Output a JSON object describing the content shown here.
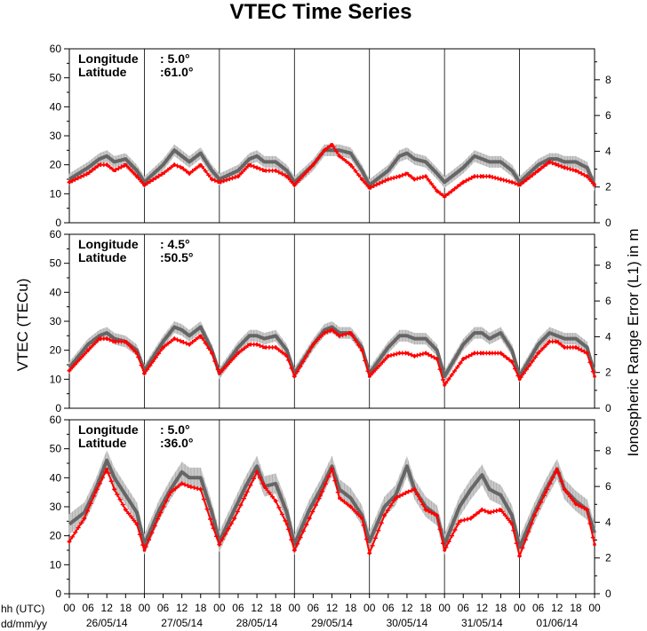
{
  "chart_data": {
    "type": "line",
    "title": "VTEC Time Series",
    "ylabel_left": "VTEC (TECu)",
    "ylabel_right": "Ionospheric Range Error (L1) in m",
    "x_row1_label": "hh (UTC)",
    "x_row2_label": "dd/mm/yy",
    "hour_ticks": [
      "00",
      "06",
      "12",
      "18"
    ],
    "final_hour_tick": "00",
    "dates": [
      "26/05/14",
      "27/05/14",
      "28/05/14",
      "29/05/14",
      "30/05/14",
      "31/05/14",
      "01/06/14"
    ],
    "ylim_left": [
      0,
      60
    ],
    "yticks_left": [
      "0",
      "10",
      "20",
      "30",
      "40",
      "50",
      "60"
    ],
    "ylim_right": [
      0,
      9.73
    ],
    "yticks_right": [
      "0",
      "2",
      "4",
      "6",
      "8"
    ],
    "grid": "vertical lines at day boundaries",
    "x_unit": "days since 26/05/14 00:00 UTC",
    "series_colors": {
      "reference": "#666666",
      "measured": "#ff0000",
      "band": "#c8c8c8",
      "error_bars": "#aaaaaa"
    },
    "panels": [
      {
        "longitude_label": "Longitude",
        "longitude_value": ":   5.0°",
        "latitude_label": "Latitude",
        "latitude_value": ":61.0°",
        "series": [
          {
            "role": "reference",
            "x": [
              0,
              0.25,
              0.4,
              0.5,
              0.6,
              0.75,
              0.9,
              1,
              1.25,
              1.4,
              1.5,
              1.6,
              1.75,
              1.9,
              2,
              2.25,
              2.4,
              2.5,
              2.6,
              2.75,
              2.9,
              3,
              3.25,
              3.4,
              3.5,
              3.6,
              3.75,
              3.9,
              4,
              4.25,
              4.4,
              4.5,
              4.6,
              4.75,
              4.9,
              5,
              5.25,
              5.4,
              5.5,
              5.6,
              5.75,
              5.9,
              6,
              6.25,
              6.4,
              6.5,
              6.6,
              6.75,
              6.9,
              7
            ],
            "y": [
              15,
              19,
              22,
              23,
              21,
              22,
              18,
              14,
              20,
              25,
              23,
              21,
              24,
              18,
              15,
              18,
              22,
              23,
              21,
              21,
              18,
              14,
              20,
              25,
              25,
              25,
              24,
              18,
              13,
              18,
              23,
              24,
              22,
              21,
              17,
              14,
              19,
              23,
              22,
              21,
              21,
              18,
              14,
              20,
              22,
              22,
              21,
              21,
              19,
              13
            ]
          },
          {
            "role": "measured",
            "x": [
              0,
              0.25,
              0.4,
              0.5,
              0.6,
              0.75,
              0.9,
              1,
              1.25,
              1.4,
              1.5,
              1.6,
              1.75,
              1.9,
              2,
              2.25,
              2.4,
              2.5,
              2.6,
              2.75,
              2.9,
              3,
              3.25,
              3.4,
              3.5,
              3.6,
              3.75,
              3.9,
              4,
              4.25,
              4.4,
              4.5,
              4.6,
              4.75,
              4.9,
              5,
              5.25,
              5.4,
              5.5,
              5.6,
              5.75,
              5.9,
              6,
              6.25,
              6.4,
              6.5,
              6.6,
              6.75,
              6.9,
              7
            ],
            "y": [
              14,
              17,
              20,
              20,
              18,
              20,
              16,
              13,
              17,
              20,
              19,
              17,
              20,
              15,
              14,
              16,
              20,
              19,
              18,
              18,
              16,
              13,
              20,
              25,
              27,
              23,
              20,
              15,
              12,
              15,
              16,
              17,
              15,
              16,
              11,
              9,
              14,
              16,
              16,
              16,
              15,
              14,
              13,
              18,
              21,
              20,
              19,
              18,
              16,
              13
            ]
          }
        ]
      },
      {
        "longitude_label": "Longitude",
        "longitude_value": ":   4.5°",
        "latitude_label": "Latitude",
        "latitude_value": ":50.5°",
        "series": [
          {
            "role": "reference",
            "x": [
              0,
              0.25,
              0.4,
              0.5,
              0.6,
              0.75,
              0.9,
              1,
              1.25,
              1.4,
              1.5,
              1.6,
              1.75,
              1.9,
              2,
              2.25,
              2.4,
              2.5,
              2.6,
              2.75,
              2.9,
              3,
              3.25,
              3.4,
              3.5,
              3.6,
              3.75,
              3.9,
              4,
              4.25,
              4.4,
              4.5,
              4.6,
              4.75,
              4.9,
              5,
              5.25,
              5.4,
              5.5,
              5.6,
              5.75,
              5.9,
              6,
              6.25,
              6.4,
              6.5,
              6.6,
              6.75,
              6.9,
              7
            ],
            "y": [
              14,
              22,
              25,
              26,
              24,
              23,
              20,
              13,
              23,
              28,
              27,
              25,
              28,
              20,
              12,
              21,
              25,
              25,
              24,
              25,
              20,
              12,
              22,
              27,
              28,
              26,
              26,
              21,
              12,
              21,
              25,
              25,
              24,
              24,
              20,
              11,
              22,
              26,
              26,
              24,
              26,
              20,
              11,
              22,
              26,
              25,
              24,
              24,
              21,
              12
            ]
          },
          {
            "role": "measured",
            "x": [
              0,
              0.25,
              0.4,
              0.5,
              0.6,
              0.75,
              0.9,
              1,
              1.25,
              1.4,
              1.5,
              1.6,
              1.75,
              1.9,
              2,
              2.25,
              2.4,
              2.5,
              2.6,
              2.75,
              2.9,
              3,
              3.25,
              3.4,
              3.5,
              3.6,
              3.75,
              3.9,
              4,
              4.25,
              4.4,
              4.5,
              4.6,
              4.75,
              4.9,
              5,
              5.25,
              5.4,
              5.5,
              5.6,
              5.75,
              5.9,
              6,
              6.25,
              6.4,
              6.5,
              6.6,
              6.75,
              6.9,
              7
            ],
            "y": [
              13,
              20,
              24,
              24,
              23,
              23,
              19,
              12,
              21,
              24,
              23,
              22,
              25,
              19,
              12,
              19,
              22,
              22,
              21,
              21,
              18,
              11,
              22,
              26,
              27,
              25,
              26,
              20,
              11,
              18,
              19,
              19,
              18,
              19,
              17,
              8,
              17,
              19,
              19,
              19,
              19,
              16,
              10,
              19,
              23,
              23,
              21,
              21,
              19,
              11
            ]
          }
        ]
      },
      {
        "longitude_label": "Longitude",
        "longitude_value": ":   5.0°",
        "latitude_label": "Latitude",
        "latitude_value": ":36.0°",
        "series": [
          {
            "role": "reference",
            "x": [
              0,
              0.2,
              0.35,
              0.5,
              0.6,
              0.75,
              0.9,
              1,
              1.2,
              1.35,
              1.5,
              1.6,
              1.75,
              1.9,
              2,
              2.2,
              2.35,
              2.5,
              2.6,
              2.75,
              2.9,
              3,
              3.2,
              3.35,
              3.5,
              3.6,
              3.75,
              3.9,
              4,
              4.2,
              4.35,
              4.5,
              4.6,
              4.75,
              4.9,
              5,
              5.2,
              5.35,
              5.5,
              5.6,
              5.75,
              5.9,
              6,
              6.2,
              6.35,
              6.5,
              6.6,
              6.75,
              6.9,
              7
            ],
            "y": [
              24,
              28,
              36,
              46,
              40,
              34,
              28,
              17,
              29,
              36,
              42,
              40,
              40,
              28,
              18,
              29,
              37,
              44,
              37,
              38,
              28,
              17,
              29,
              36,
              44,
              36,
              33,
              27,
              18,
              30,
              34,
              44,
              36,
              30,
              27,
              17,
              30,
              36,
              41,
              36,
              34,
              27,
              16,
              28,
              36,
              43,
              36,
              32,
              29,
              21
            ]
          },
          {
            "role": "measured",
            "x": [
              0,
              0.2,
              0.35,
              0.5,
              0.6,
              0.75,
              0.9,
              1,
              1.2,
              1.35,
              1.5,
              1.6,
              1.75,
              1.9,
              2,
              2.2,
              2.35,
              2.5,
              2.6,
              2.75,
              2.9,
              3,
              3.2,
              3.35,
              3.5,
              3.6,
              3.75,
              3.9,
              4,
              4.2,
              4.35,
              4.5,
              4.6,
              4.75,
              4.9,
              5,
              5.2,
              5.35,
              5.5,
              5.6,
              5.75,
              5.9,
              6,
              6.2,
              6.35,
              6.5,
              6.6,
              6.75,
              6.9,
              7
            ],
            "y": [
              18,
              26,
              35,
              43,
              36,
              29,
              24,
              15,
              27,
              35,
              38,
              37,
              36,
              24,
              17,
              26,
              34,
              42,
              37,
              32,
              24,
              15,
              26,
              34,
              43,
              33,
              30,
              26,
              14,
              27,
              33,
              35,
              36,
              29,
              27,
              15,
              25,
              26,
              29,
              28,
              29,
              24,
              13,
              27,
              35,
              43,
              36,
              31,
              29,
              17
            ]
          }
        ]
      }
    ]
  }
}
